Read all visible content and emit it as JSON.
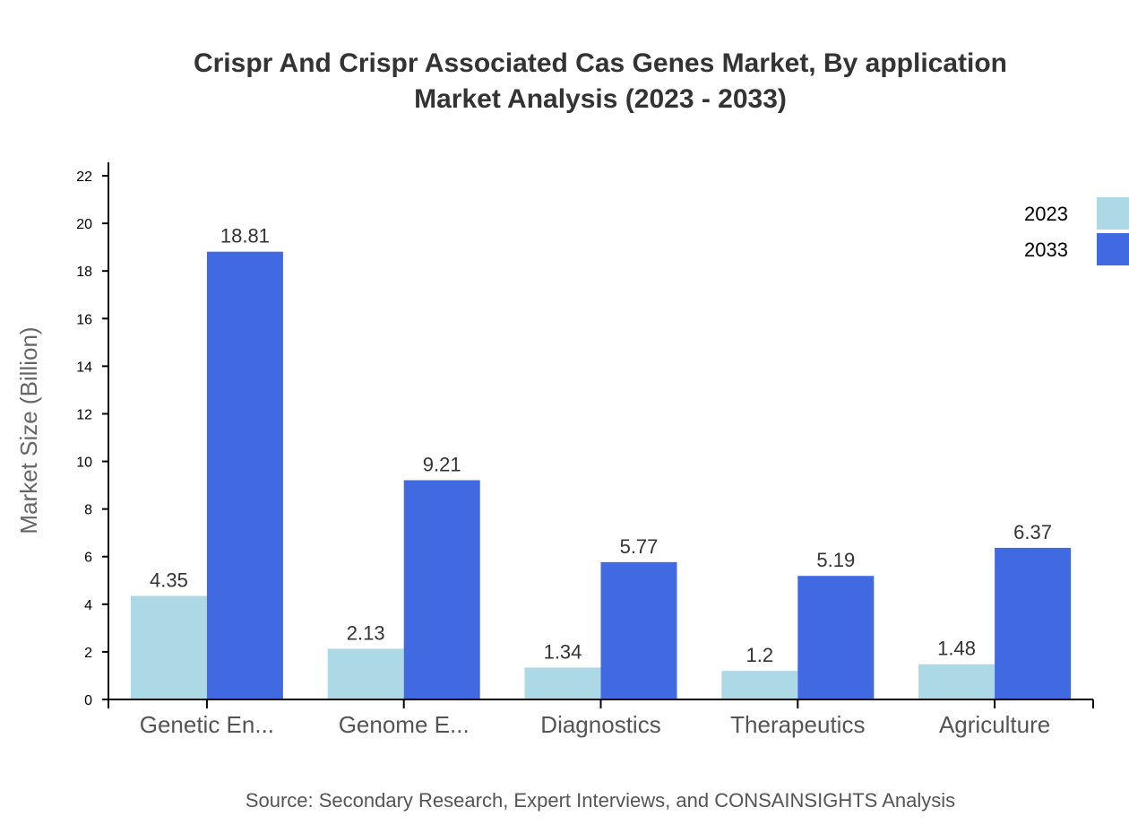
{
  "chart_data": {
    "type": "bar",
    "title": [
      "Crispr And Crispr Associated Cas Genes Market, By application",
      "Market Analysis (2023 - 2033)"
    ],
    "ylabel": "Market Size (Billion)",
    "xlabel": "",
    "ylim": [
      0,
      22
    ],
    "yticks": [
      0,
      2,
      4,
      6,
      8,
      10,
      12,
      14,
      16,
      18,
      20,
      22
    ],
    "categories": [
      "Genetic En...",
      "Genome E...",
      "Diagnostics",
      "Therapeutics",
      "Agriculture"
    ],
    "series": [
      {
        "name": "2023",
        "color": "#add8e6",
        "values": [
          4.35,
          2.13,
          1.34,
          1.2,
          1.48
        ]
      },
      {
        "name": "2033",
        "color": "#4169e1",
        "values": [
          18.81,
          9.21,
          5.77,
          5.19,
          6.37
        ]
      }
    ],
    "legend": "top-right",
    "grid": false,
    "source": "Source: Secondary Research, Expert Interviews, and CONSAINSIGHTS Analysis"
  }
}
